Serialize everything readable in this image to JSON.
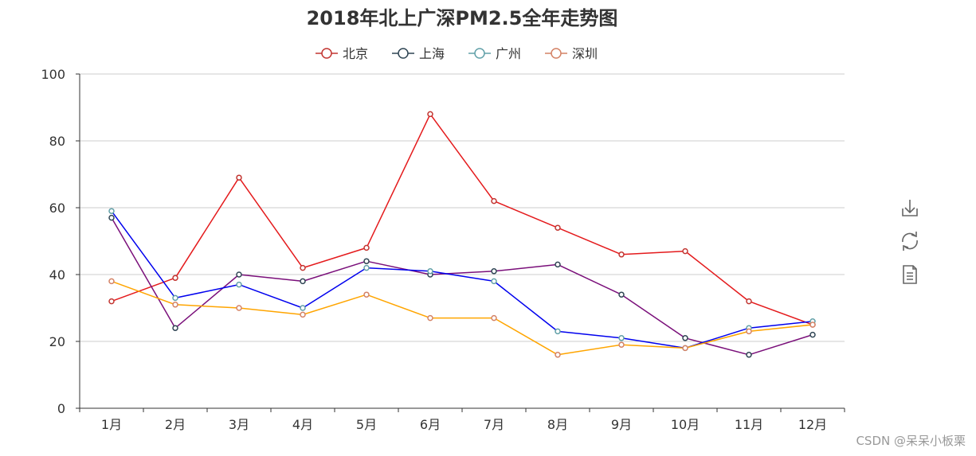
{
  "chart_data": {
    "type": "line",
    "title": "2018年北上广深PM2.5全年走势图",
    "xlabel": "",
    "ylabel": "",
    "categories": [
      "1月",
      "2月",
      "3月",
      "4月",
      "5月",
      "6月",
      "7月",
      "8月",
      "9月",
      "10月",
      "11月",
      "12月"
    ],
    "ylim": [
      0,
      100
    ],
    "yticks": [
      0,
      20,
      40,
      60,
      80,
      100
    ],
    "grid": true,
    "legend_position": "top-center",
    "series": [
      {
        "name": "北京",
        "line_color": "#e41a1c",
        "marker_color": "#c23531",
        "values": [
          32,
          39,
          69,
          42,
          48,
          88,
          62,
          54,
          46,
          47,
          32,
          25
        ]
      },
      {
        "name": "上海",
        "line_color": "#7a0f7a",
        "marker_color": "#2f4554",
        "values": [
          57,
          24,
          40,
          38,
          44,
          40,
          41,
          43,
          34,
          21,
          16,
          22
        ]
      },
      {
        "name": "广州",
        "line_color": "#0000ee",
        "marker_color": "#61a0a8",
        "values": [
          59,
          33,
          37,
          30,
          42,
          41,
          38,
          23,
          21,
          18,
          24,
          26
        ]
      },
      {
        "name": "深圳",
        "line_color": "#ffa500",
        "marker_color": "#d48265",
        "values": [
          38,
          31,
          30,
          28,
          34,
          27,
          27,
          16,
          19,
          18,
          23,
          25
        ]
      }
    ]
  },
  "toolbox": {
    "items": [
      {
        "icon": "download-icon"
      },
      {
        "icon": "refresh-icon"
      },
      {
        "icon": "data-view-icon"
      }
    ]
  },
  "watermark": "CSDN @呆呆小板栗"
}
